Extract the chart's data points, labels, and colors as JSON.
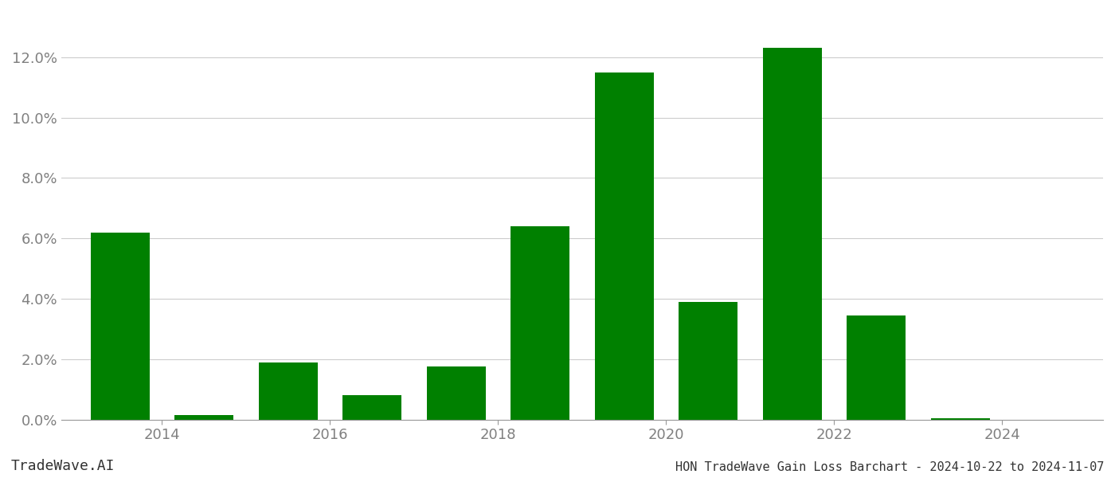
{
  "years": [
    2013,
    2014,
    2015,
    2016,
    2017,
    2018,
    2019,
    2020,
    2021,
    2022,
    2023
  ],
  "values": [
    0.062,
    0.0015,
    0.019,
    0.008,
    0.0175,
    0.064,
    0.115,
    0.039,
    0.123,
    0.0345,
    0.0005
  ],
  "bar_color": "#008000",
  "background_color": "#ffffff",
  "grid_color": "#cccccc",
  "ylabel_color": "#808080",
  "xlabel_color": "#808080",
  "title": "HON TradeWave Gain Loss Barchart - 2024-10-22 to 2024-11-07",
  "watermark": "TradeWave.AI",
  "xlim": [
    2012.3,
    2024.7
  ],
  "ylim": [
    0,
    0.135
  ],
  "xtick_positions": [
    2013.5,
    2015.5,
    2017.5,
    2019.5,
    2021.5,
    2023.5
  ],
  "xtick_labels": [
    "2014",
    "2016",
    "2018",
    "2020",
    "2022",
    "2024"
  ],
  "yticks": [
    0.0,
    0.02,
    0.04,
    0.06,
    0.08,
    0.1,
    0.12
  ],
  "bar_width": 0.7,
  "title_fontsize": 11,
  "tick_fontsize": 13,
  "watermark_fontsize": 13
}
